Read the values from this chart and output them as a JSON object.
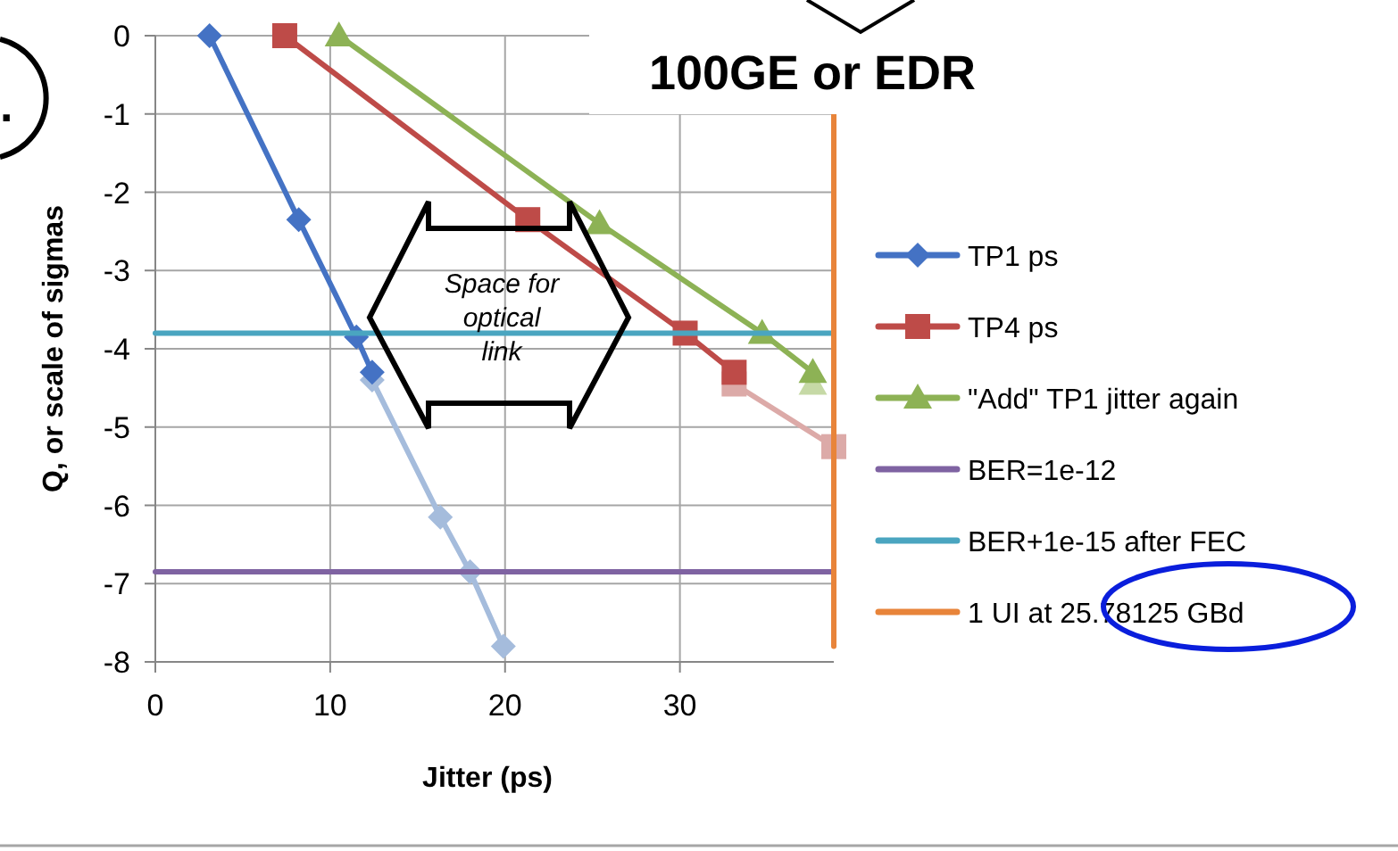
{
  "chart_data": {
    "type": "line",
    "title": "100GE or EDR",
    "xlabel": "Jitter (ps)",
    "ylabel": "Q, or scale of sigmas",
    "xlim": [
      0,
      38.8
    ],
    "ylim": [
      -8,
      0
    ],
    "xticks": [
      0,
      10,
      20,
      30
    ],
    "yticks": [
      -8,
      -7,
      -6,
      -5,
      -4,
      -3,
      -2,
      -1,
      0
    ],
    "grid": true,
    "legend": "right",
    "annotations": [
      "Space for optical link",
      "."
    ],
    "series": [
      {
        "color": "#a5bcdc",
        "marker": "diamond",
        "x": [
          12.4,
          16.3,
          18.0,
          19.9
        ],
        "values": [
          -4.4,
          -6.15,
          -6.85,
          -7.8
        ]
      },
      {
        "color": "#dcaaa8",
        "marker": "square",
        "x": [
          33.1,
          38.8
        ],
        "values": [
          -4.45,
          -5.25
        ]
      },
      {
        "color": "#c6d9a6",
        "marker": "triangle",
        "x": [
          37.6
        ],
        "values": [
          -4.45
        ]
      },
      {
        "name": "TP1 ps",
        "color": "#4472c4",
        "marker": "diamond",
        "x": [
          3.1,
          8.2,
          11.5,
          12.4
        ],
        "values": [
          0,
          -2.35,
          -3.85,
          -4.3
        ]
      },
      {
        "name": "TP4 ps",
        "color": "#be4b48",
        "marker": "square",
        "x": [
          7.4,
          21.3,
          30.3,
          33.1
        ],
        "values": [
          0,
          -2.35,
          -3.8,
          -4.3
        ]
      },
      {
        "name": "\"Add\" TP1 jitter again",
        "color": "#8db255",
        "marker": "triangle",
        "x": [
          10.5,
          25.4,
          34.7,
          37.6
        ],
        "values": [
          0,
          -2.4,
          -3.8,
          -4.3
        ]
      },
      {
        "name": "BER=1e-12",
        "color": "#7f63a2",
        "marker": "none",
        "x": [
          0,
          38.8
        ],
        "values": [
          -6.85,
          -6.85
        ]
      },
      {
        "name": "BER+1e-15 after FEC",
        "color": "#4aa5c0",
        "marker": "none",
        "x": [
          0,
          38.8
        ],
        "values": [
          -3.8,
          -3.8
        ]
      },
      {
        "name": "1 UI at 25.78125 GBd",
        "color": "#e8843a",
        "marker": "none",
        "x": [
          38.8,
          38.8
        ],
        "values": [
          -7.8,
          -1.0
        ]
      }
    ]
  }
}
